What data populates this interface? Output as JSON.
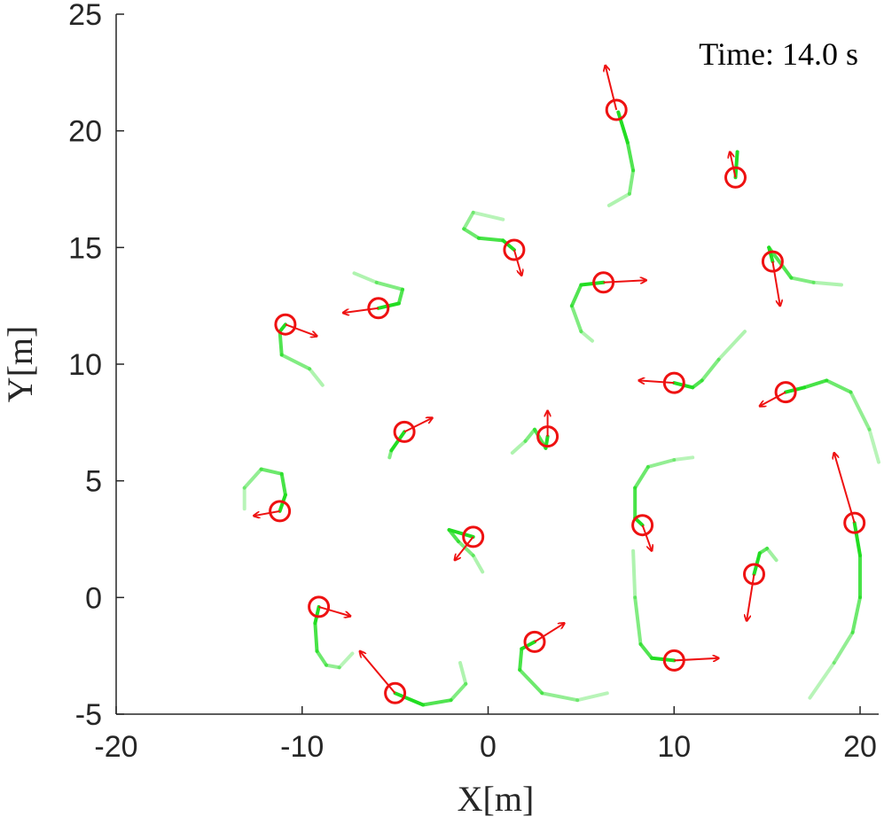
{
  "chart_data": {
    "type": "scatter",
    "annotation": "Time: 14.0 s",
    "xlabel": "X[m]",
    "ylabel": "Y[m]",
    "xlim": [
      -20,
      21
    ],
    "ylim": [
      -5,
      25
    ],
    "xticks": [
      "-20",
      "-10",
      "0",
      "10",
      "20"
    ],
    "yticks": [
      "-5",
      "0",
      "5",
      "10",
      "15",
      "20",
      "25"
    ],
    "xtick_values": [
      -20,
      -10,
      0,
      10,
      20
    ],
    "ytick_values": [
      -5,
      0,
      5,
      10,
      15,
      20,
      25
    ],
    "grid": false,
    "colors": {
      "agent": "#ee1111",
      "trail": "#22dd22",
      "axis": "#262626"
    },
    "agents": [
      {
        "x": 6.9,
        "y": 20.9,
        "vx": -0.6,
        "vy": 1.9,
        "trail": [
          [
            7.0,
            20.8
          ],
          [
            7.5,
            19.5
          ],
          [
            7.8,
            18.3
          ],
          [
            7.6,
            17.3
          ],
          [
            6.5,
            16.8
          ]
        ]
      },
      {
        "x": 13.3,
        "y": 18.0,
        "vx": -0.3,
        "vy": 1.1,
        "trail": [
          [
            13.3,
            18.0
          ],
          [
            13.4,
            19.1
          ]
        ]
      },
      {
        "x": 1.4,
        "y": 14.9,
        "vx": 0.4,
        "vy": -1.1,
        "trail": [
          [
            1.4,
            14.9
          ],
          [
            0.8,
            15.3
          ],
          [
            -0.5,
            15.4
          ],
          [
            -1.3,
            15.8
          ],
          [
            -0.8,
            16.5
          ],
          [
            0.8,
            16.2
          ]
        ]
      },
      {
        "x": 15.3,
        "y": 14.4,
        "vx": 0.4,
        "vy": -1.9,
        "trail": [
          [
            15.3,
            14.4
          ],
          [
            15.1,
            15.0
          ],
          [
            16.3,
            13.7
          ],
          [
            17.5,
            13.5
          ],
          [
            19.0,
            13.4
          ]
        ]
      },
      {
        "x": 6.2,
        "y": 13.5,
        "vx": 2.3,
        "vy": 0.1,
        "trail": [
          [
            6.2,
            13.5
          ],
          [
            5.0,
            13.4
          ],
          [
            4.5,
            12.5
          ],
          [
            5.0,
            11.4
          ],
          [
            5.6,
            11.0
          ]
        ]
      },
      {
        "x": -5.9,
        "y": 12.4,
        "vx": -1.9,
        "vy": -0.2,
        "trail": [
          [
            -5.9,
            12.4
          ],
          [
            -4.8,
            12.6
          ],
          [
            -4.6,
            13.2
          ],
          [
            -6.0,
            13.5
          ],
          [
            -7.2,
            13.9
          ]
        ]
      },
      {
        "x": -10.9,
        "y": 11.7,
        "vx": 1.7,
        "vy": -0.5,
        "trail": [
          [
            -10.9,
            11.7
          ],
          [
            -11.2,
            11.4
          ],
          [
            -11.1,
            10.4
          ],
          [
            -9.6,
            9.8
          ],
          [
            -8.9,
            9.1
          ]
        ]
      },
      {
        "x": 10.0,
        "y": 9.2,
        "vx": -1.9,
        "vy": 0.1,
        "trail": [
          [
            10.0,
            9.2
          ],
          [
            11.0,
            9.0
          ],
          [
            11.5,
            9.3
          ],
          [
            12.4,
            10.2
          ],
          [
            13.8,
            11.4
          ]
        ]
      },
      {
        "x": 16.0,
        "y": 8.8,
        "vx": -1.4,
        "vy": -0.6,
        "trail": [
          [
            16.0,
            8.8
          ],
          [
            17.0,
            9.0
          ],
          [
            18.2,
            9.3
          ],
          [
            19.5,
            8.8
          ],
          [
            20.5,
            7.2
          ],
          [
            21.0,
            5.8
          ]
        ]
      },
      {
        "x": -4.5,
        "y": 7.1,
        "vx": 1.5,
        "vy": 0.6,
        "trail": [
          [
            -4.5,
            7.1
          ],
          [
            -5.2,
            6.3
          ],
          [
            -5.3,
            6.0
          ]
        ]
      },
      {
        "x": 3.2,
        "y": 6.9,
        "vx": 0.0,
        "vy": 1.1,
        "trail": [
          [
            3.2,
            6.9
          ],
          [
            3.1,
            6.4
          ],
          [
            2.5,
            7.2
          ],
          [
            2.0,
            6.7
          ],
          [
            1.3,
            6.2
          ]
        ]
      },
      {
        "x": -11.2,
        "y": 3.7,
        "vx": -1.4,
        "vy": -0.2,
        "trail": [
          [
            -11.2,
            3.7
          ],
          [
            -10.9,
            4.4
          ],
          [
            -11.1,
            5.3
          ],
          [
            -12.2,
            5.5
          ],
          [
            -13.1,
            4.7
          ],
          [
            -13.1,
            3.8
          ]
        ]
      },
      {
        "x": -0.8,
        "y": 2.6,
        "vx": -1.0,
        "vy": -1.0,
        "trail": [
          [
            -0.8,
            2.6
          ],
          [
            -2.1,
            2.9
          ],
          [
            -1.6,
            2.4
          ],
          [
            -0.8,
            1.8
          ],
          [
            -0.3,
            1.1
          ]
        ]
      },
      {
        "x": 8.3,
        "y": 3.1,
        "vx": 0.5,
        "vy": -1.1,
        "trail": [
          [
            8.3,
            3.1
          ],
          [
            7.9,
            3.4
          ],
          [
            7.9,
            4.7
          ],
          [
            8.6,
            5.6
          ],
          [
            10.0,
            5.9
          ],
          [
            11.0,
            6.0
          ]
        ]
      },
      {
        "x": 19.7,
        "y": 3.2,
        "vx": -1.1,
        "vy": 3.0,
        "trail": [
          [
            19.7,
            3.2
          ],
          [
            20.0,
            1.8
          ],
          [
            20.0,
            0.0
          ],
          [
            19.6,
            -1.5
          ],
          [
            18.6,
            -2.8
          ],
          [
            17.3,
            -4.3
          ]
        ]
      },
      {
        "x": 14.3,
        "y": 1.0,
        "vx": -0.4,
        "vy": -2.0,
        "trail": [
          [
            14.3,
            1.0
          ],
          [
            14.6,
            1.9
          ],
          [
            15.0,
            2.1
          ],
          [
            15.5,
            1.6
          ]
        ]
      },
      {
        "x": -9.1,
        "y": -0.4,
        "vx": 1.7,
        "vy": -0.4,
        "trail": [
          [
            -9.1,
            -0.4
          ],
          [
            -9.3,
            -1.1
          ],
          [
            -9.2,
            -2.3
          ],
          [
            -8.7,
            -2.9
          ],
          [
            -8.0,
            -3.0
          ],
          [
            -7.3,
            -2.4
          ]
        ]
      },
      {
        "x": 2.5,
        "y": -1.9,
        "vx": 1.6,
        "vy": 0.8,
        "trail": [
          [
            2.5,
            -1.9
          ],
          [
            1.8,
            -2.2
          ],
          [
            1.7,
            -3.1
          ],
          [
            2.9,
            -4.1
          ],
          [
            4.8,
            -4.4
          ],
          [
            6.4,
            -4.1
          ]
        ]
      },
      {
        "x": 10.0,
        "y": -2.7,
        "vx": 2.4,
        "vy": 0.1,
        "trail": [
          [
            10.0,
            -2.7
          ],
          [
            8.8,
            -2.6
          ],
          [
            8.2,
            -2.0
          ],
          [
            7.9,
            0.0
          ],
          [
            7.8,
            2.0
          ]
        ]
      },
      {
        "x": -5.0,
        "y": -4.1,
        "vx": -1.9,
        "vy": 1.8,
        "trail": [
          [
            -5.0,
            -4.1
          ],
          [
            -3.5,
            -4.6
          ],
          [
            -2.0,
            -4.4
          ],
          [
            -1.2,
            -3.7
          ],
          [
            -1.5,
            -2.8
          ]
        ]
      }
    ]
  }
}
